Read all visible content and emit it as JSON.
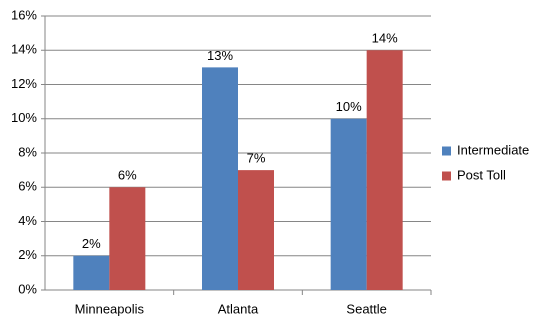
{
  "chart_data": {
    "type": "bar",
    "categories": [
      "Minneapolis",
      "Atlanta",
      "Seattle"
    ],
    "series": [
      {
        "name": "Intermediate",
        "color": "#4f81bd",
        "values": [
          2,
          13,
          10
        ],
        "value_labels": [
          "2%",
          "13%",
          "10%"
        ]
      },
      {
        "name": "Post Toll",
        "color": "#c0504d",
        "values": [
          6,
          7,
          14
        ],
        "value_labels": [
          "6%",
          "7%",
          "14%"
        ]
      }
    ],
    "ylim": [
      0,
      16
    ],
    "yticks": [
      {
        "value": 0,
        "label": "0%"
      },
      {
        "value": 2,
        "label": "2%"
      },
      {
        "value": 4,
        "label": "4%"
      },
      {
        "value": 6,
        "label": "6%"
      },
      {
        "value": 8,
        "label": "8%"
      },
      {
        "value": 10,
        "label": "10%"
      },
      {
        "value": 12,
        "label": "12%"
      },
      {
        "value": 14,
        "label": "14%"
      },
      {
        "value": 16,
        "label": "16%"
      }
    ],
    "grid": true,
    "legend": "right"
  }
}
